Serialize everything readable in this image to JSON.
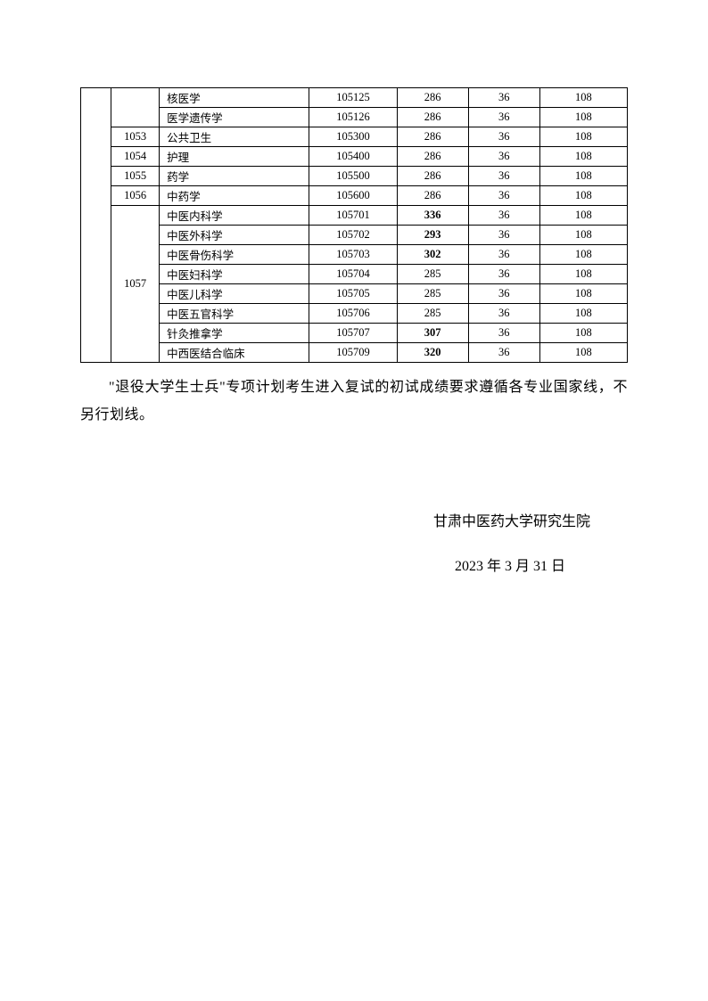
{
  "table": {
    "rows": [
      {
        "blank_rowspan": 14,
        "code": "",
        "code_rowspan": 2,
        "name": "核医学",
        "num": "105125",
        "s1": "286",
        "s1_bold": false,
        "s2": "36",
        "s3": "108"
      },
      {
        "name": "医学遗传学",
        "num": "105126",
        "s1": "286",
        "s1_bold": false,
        "s2": "36",
        "s3": "108"
      },
      {
        "code": "1053",
        "name": "公共卫生",
        "num": "105300",
        "s1": "286",
        "s1_bold": false,
        "s2": "36",
        "s3": "108"
      },
      {
        "code": "1054",
        "name": "护理",
        "num": "105400",
        "s1": "286",
        "s1_bold": false,
        "s2": "36",
        "s3": "108"
      },
      {
        "code": "1055",
        "name": "药学",
        "num": "105500",
        "s1": "286",
        "s1_bold": false,
        "s2": "36",
        "s3": "108"
      },
      {
        "code": "1056",
        "name": "中药学",
        "num": "105600",
        "s1": "286",
        "s1_bold": false,
        "s2": "36",
        "s3": "108"
      },
      {
        "code": "1057",
        "code_rowspan": 8,
        "name": "中医内科学",
        "num": "105701",
        "s1": "336",
        "s1_bold": true,
        "s2": "36",
        "s3": "108"
      },
      {
        "name": "中医外科学",
        "num": "105702",
        "s1": "293",
        "s1_bold": true,
        "s2": "36",
        "s3": "108"
      },
      {
        "name": "中医骨伤科学",
        "num": "105703",
        "s1": "302",
        "s1_bold": true,
        "s2": "36",
        "s3": "108"
      },
      {
        "name": "中医妇科学",
        "num": "105704",
        "s1": "285",
        "s1_bold": false,
        "s2": "36",
        "s3": "108"
      },
      {
        "name": "中医儿科学",
        "num": "105705",
        "s1": "285",
        "s1_bold": false,
        "s2": "36",
        "s3": "108"
      },
      {
        "name": "中医五官科学",
        "num": "105706",
        "s1": "285",
        "s1_bold": false,
        "s2": "36",
        "s3": "108"
      },
      {
        "name": "针灸推拿学",
        "num": "105707",
        "s1": "307",
        "s1_bold": true,
        "s2": "36",
        "s3": "108"
      },
      {
        "name": "中西医结合临床",
        "num": "105709",
        "s1": "320",
        "s1_bold": true,
        "s2": "36",
        "s3": "108"
      }
    ]
  },
  "paragraph": "\"退役大学生士兵\"专项计划考生进入复试的初试成绩要求遵循各专业国家线，不另行划线。",
  "signature": "甘肃中医药大学研究生院",
  "date": "2023 年 3 月 31 日",
  "colors": {
    "text": "#000000",
    "border": "#000000",
    "bg": "#ffffff"
  }
}
